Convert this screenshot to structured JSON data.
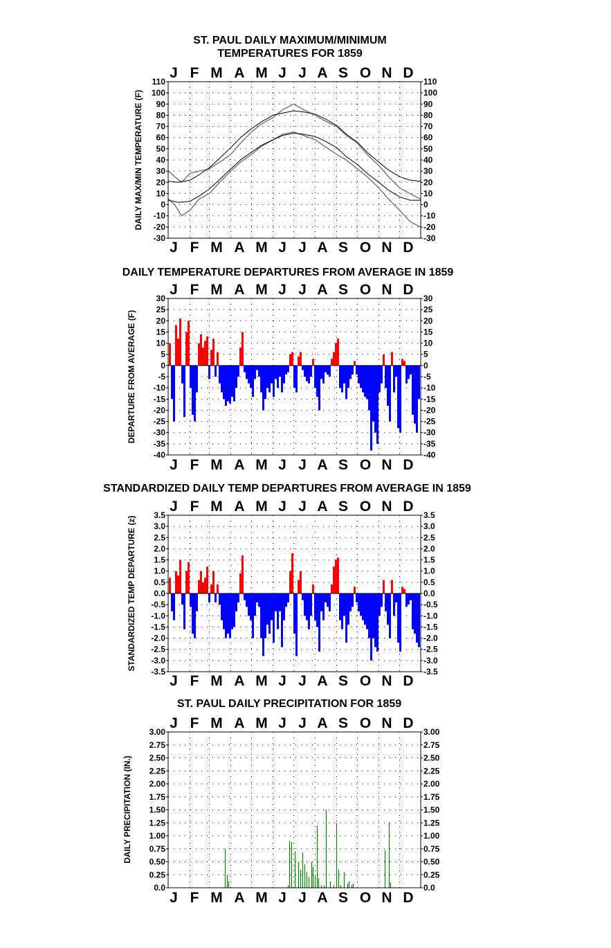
{
  "chart_data": [
    {
      "type": "line",
      "title_lines": [
        "ST. PAUL DAILY MAXIMUM/MINIMUM",
        "TEMPERATURES FOR 1859"
      ],
      "ylabel": "DAILY MAX/MIN TEMPERATURE (F)",
      "months": [
        "J",
        "F",
        "M",
        "A",
        "M",
        "J",
        "J",
        "A",
        "S",
        "O",
        "N",
        "D"
      ],
      "ylim": [
        -30,
        110
      ],
      "yticks": [
        110,
        100,
        90,
        80,
        70,
        60,
        50,
        40,
        30,
        20,
        10,
        0,
        -10,
        -20,
        -30
      ],
      "grid": "dotted",
      "series": [
        {
          "color": "#808080",
          "x": [
            1,
            10,
            20,
            32,
            45,
            60,
            75,
            91,
            105,
            121,
            135,
            152,
            166,
            182,
            196,
            213,
            227,
            244,
            258,
            274,
            288,
            305,
            319,
            335,
            350,
            365
          ],
          "values": [
            30,
            25,
            20,
            28,
            30,
            32,
            38,
            45,
            55,
            65,
            72,
            78,
            85,
            90,
            85,
            80,
            75,
            70,
            62,
            55,
            45,
            35,
            25,
            15,
            10,
            5
          ]
        },
        {
          "color": "#808080",
          "x": [
            1,
            10,
            20,
            32,
            45,
            60,
            75,
            91,
            105,
            121,
            135,
            152,
            166,
            182,
            196,
            213,
            227,
            244,
            258,
            274,
            288,
            305,
            319,
            335,
            350,
            365
          ],
          "values": [
            5,
            0,
            -10,
            -5,
            5,
            10,
            20,
            30,
            38,
            45,
            52,
            58,
            63,
            65,
            62,
            58,
            52,
            45,
            40,
            32,
            25,
            15,
            5,
            -5,
            -15,
            -20
          ]
        },
        {
          "color": "#000000",
          "x": [
            1,
            15,
            32,
            46,
            60,
            74,
            91,
            105,
            121,
            135,
            152,
            166,
            182,
            196,
            213,
            227,
            244,
            258,
            274,
            288,
            305,
            319,
            335,
            350,
            365
          ],
          "values": [
            21,
            20,
            22,
            27,
            33,
            41,
            51,
            60,
            68,
            74,
            80,
            82,
            84,
            83,
            81,
            77,
            71,
            63,
            56,
            47,
            38,
            31,
            25,
            22,
            21
          ]
        },
        {
          "color": "#000000",
          "x": [
            1,
            15,
            32,
            46,
            60,
            74,
            91,
            105,
            121,
            135,
            152,
            166,
            182,
            196,
            213,
            227,
            244,
            258,
            274,
            288,
            305,
            319,
            335,
            350,
            365
          ],
          "values": [
            4,
            2,
            3,
            8,
            14,
            22,
            32,
            40,
            47,
            53,
            58,
            62,
            64,
            63,
            61,
            57,
            51,
            43,
            36,
            28,
            20,
            13,
            7,
            4,
            4
          ]
        }
      ]
    },
    {
      "type": "bar",
      "title": "DAILY TEMPERATURE DEPARTURES FROM AVERAGE IN 1859",
      "ylabel": "DEPARTURE FROM AVERAGE (F)",
      "months": [
        "J",
        "F",
        "M",
        "A",
        "M",
        "J",
        "J",
        "A",
        "S",
        "O",
        "N",
        "D"
      ],
      "ylim": [
        -40,
        30
      ],
      "yticks": [
        30,
        25,
        20,
        15,
        10,
        5,
        0,
        -5,
        -10,
        -15,
        -20,
        -25,
        -30,
        -35,
        -40
      ],
      "grid": "dotted",
      "positive_color": "#ff0000",
      "negative_color": "#0000ff",
      "x": [
        3,
        6,
        9,
        12,
        15,
        18,
        21,
        24,
        27,
        30,
        33,
        36,
        39,
        42,
        45,
        48,
        51,
        54,
        57,
        60,
        63,
        66,
        69,
        72,
        75,
        78,
        81,
        84,
        87,
        90,
        93,
        96,
        99,
        102,
        105,
        108,
        111,
        114,
        117,
        120,
        123,
        126,
        129,
        132,
        135,
        138,
        141,
        144,
        147,
        150,
        153,
        156,
        159,
        162,
        165,
        168,
        171,
        174,
        177,
        180,
        183,
        186,
        189,
        192,
        195,
        198,
        201,
        204,
        207,
        210,
        213,
        216,
        219,
        222,
        225,
        228,
        231,
        234,
        237,
        240,
        243,
        246,
        249,
        252,
        255,
        258,
        261,
        264,
        267,
        270,
        273,
        276,
        279,
        282,
        285,
        288,
        291,
        294,
        297,
        300,
        303,
        306,
        309,
        312,
        315,
        318,
        321,
        324,
        327,
        330,
        333,
        336,
        339,
        342,
        345,
        348,
        351,
        354,
        357,
        360,
        363
      ],
      "values": [
        10,
        -15,
        -25,
        18,
        12,
        21,
        -8,
        -23,
        15,
        20,
        -10,
        -22,
        -25,
        -12,
        10,
        14,
        8,
        11,
        13,
        -6,
        7,
        12,
        -5,
        6,
        -8,
        -12,
        -15,
        -18,
        -16,
        -17,
        -14,
        -16,
        -10,
        -5,
        8,
        15,
        -3,
        -6,
        -8,
        -10,
        -14,
        -6,
        -2,
        -5,
        -12,
        -20,
        -15,
        -10,
        -12,
        -8,
        -14,
        -6,
        -10,
        -5,
        -12,
        -8,
        -4,
        -3,
        5,
        6,
        -10,
        -12,
        4,
        6,
        -2,
        -5,
        -7,
        -8,
        -5,
        3,
        -10,
        -14,
        -20,
        -6,
        -8,
        -3,
        -4,
        -5,
        3,
        6,
        10,
        12,
        -10,
        -12,
        -8,
        -15,
        -10,
        -6,
        -4,
        2,
        -4,
        -8,
        -10,
        -12,
        -14,
        -15,
        -20,
        -38,
        -25,
        -30,
        -35,
        -12,
        -8,
        5,
        -10,
        -18,
        -25,
        6,
        -12,
        -5,
        -28,
        -30,
        3,
        2,
        -8,
        -6,
        -4,
        -22,
        -26,
        -30,
        -15
      ]
    },
    {
      "type": "bar",
      "title": "STANDARDIZED DAILY TEMP DEPARTURES FROM AVERAGE IN 1859",
      "ylabel": "STANDARDIZED TEMP DEPARTURE (z)",
      "months": [
        "J",
        "F",
        "M",
        "A",
        "M",
        "J",
        "J",
        "A",
        "S",
        "O",
        "N",
        "D"
      ],
      "ylim": [
        -3.5,
        3.5
      ],
      "yticks": [
        "3.5",
        "3.0",
        "2.5",
        "2.0",
        "1.5",
        "1.0",
        "0.5",
        "0.0",
        "-0.5",
        "-1.0",
        "-1.5",
        "-2.0",
        "-2.5",
        "-3.0",
        "-3.5"
      ],
      "grid": "dotted",
      "positive_color": "#ff0000",
      "negative_color": "#0000ff",
      "x": [
        3,
        6,
        9,
        12,
        15,
        18,
        21,
        24,
        27,
        30,
        33,
        36,
        39,
        42,
        45,
        48,
        51,
        54,
        57,
        60,
        63,
        66,
        69,
        72,
        75,
        78,
        81,
        84,
        87,
        90,
        93,
        96,
        99,
        102,
        105,
        108,
        111,
        114,
        117,
        120,
        123,
        126,
        129,
        132,
        135,
        138,
        141,
        144,
        147,
        150,
        153,
        156,
        159,
        162,
        165,
        168,
        171,
        174,
        177,
        180,
        183,
        186,
        189,
        192,
        195,
        198,
        201,
        204,
        207,
        210,
        213,
        216,
        219,
        222,
        225,
        228,
        231,
        234,
        237,
        240,
        243,
        246,
        249,
        252,
        255,
        258,
        261,
        264,
        267,
        270,
        273,
        276,
        279,
        282,
        285,
        288,
        291,
        294,
        297,
        300,
        303,
        306,
        309,
        312,
        315,
        318,
        321,
        324,
        327,
        330,
        333,
        336,
        339,
        342,
        345,
        348,
        351,
        354,
        357,
        360,
        363
      ],
      "values": [
        0.7,
        -0.8,
        -1.2,
        1.0,
        0.8,
        1.5,
        -0.5,
        -1.6,
        1.0,
        1.4,
        -0.6,
        -1.8,
        -2.0,
        -0.8,
        0.6,
        1.0,
        0.5,
        0.7,
        1.2,
        -0.4,
        0.4,
        1.0,
        -0.4,
        0.4,
        -0.5,
        -1.2,
        -1.6,
        -2.0,
        -1.8,
        -2.0,
        -1.6,
        -1.5,
        -0.8,
        -0.4,
        0.9,
        1.7,
        -0.3,
        -0.6,
        -1.0,
        -1.2,
        -2.0,
        -1.0,
        -0.4,
        -0.6,
        -2.0,
        -2.8,
        -2.0,
        -1.4,
        -1.8,
        -1.2,
        -2.2,
        -0.8,
        -1.6,
        -0.8,
        -2.4,
        -1.2,
        -0.6,
        -0.4,
        1.0,
        1.8,
        -1.8,
        -2.8,
        0.6,
        1.0,
        -0.3,
        -1.0,
        -1.2,
        -1.6,
        -1.0,
        0.4,
        -1.2,
        -1.5,
        -2.6,
        -0.8,
        -1.2,
        -0.4,
        -0.6,
        -0.8,
        0.4,
        1.2,
        1.5,
        1.6,
        -1.2,
        -1.6,
        -1.0,
        -2.2,
        -1.4,
        -0.8,
        -0.6,
        0.3,
        -0.4,
        -0.8,
        -1.0,
        -1.2,
        -1.4,
        -1.6,
        -2.0,
        -3.0,
        -2.0,
        -2.4,
        -2.6,
        -1.0,
        -0.6,
        0.6,
        -0.8,
        -1.4,
        -2.0,
        0.6,
        -1.0,
        -0.4,
        -2.2,
        -2.6,
        0.3,
        0.2,
        -0.6,
        -0.5,
        -0.3,
        -1.6,
        -1.8,
        -2.2,
        -2.4
      ]
    },
    {
      "type": "bar",
      "title": "ST. PAUL DAILY PRECIPITATION FOR 1859",
      "ylabel": "DAILY PRECIPITATION (IN.)",
      "months": [
        "J",
        "F",
        "M",
        "A",
        "M",
        "J",
        "J",
        "A",
        "S",
        "O",
        "N",
        "D"
      ],
      "ylim": [
        0,
        3.0
      ],
      "yticks": [
        "3.00",
        "2.75",
        "2.50",
        "2.25",
        "2.00",
        "1.75",
        "1.50",
        "1.25",
        "1.00",
        "0.75",
        "0.50",
        "0.25",
        "0.0"
      ],
      "grid": "dotted",
      "color": "#008000",
      "x": [
        83,
        86,
        88,
        174,
        176,
        179,
        184,
        189,
        192,
        195,
        198,
        201,
        204,
        208,
        210,
        213,
        216,
        218,
        222,
        226,
        229,
        235,
        240,
        244,
        247,
        250,
        255,
        260,
        262,
        266,
        268,
        314,
        320,
        322
      ],
      "values": [
        0.75,
        0.25,
        0.12,
        0.05,
        0.9,
        0.88,
        0.7,
        0.5,
        0.35,
        0.68,
        0.45,
        0.3,
        0.2,
        0.5,
        0.4,
        0.25,
        1.2,
        0.18,
        0.05,
        0.04,
        1.5,
        0.12,
        0.05,
        1.25,
        0.35,
        0.05,
        0.3,
        0.08,
        0.12,
        0.05,
        0.08,
        0.72,
        1.25,
        0.1
      ]
    }
  ]
}
